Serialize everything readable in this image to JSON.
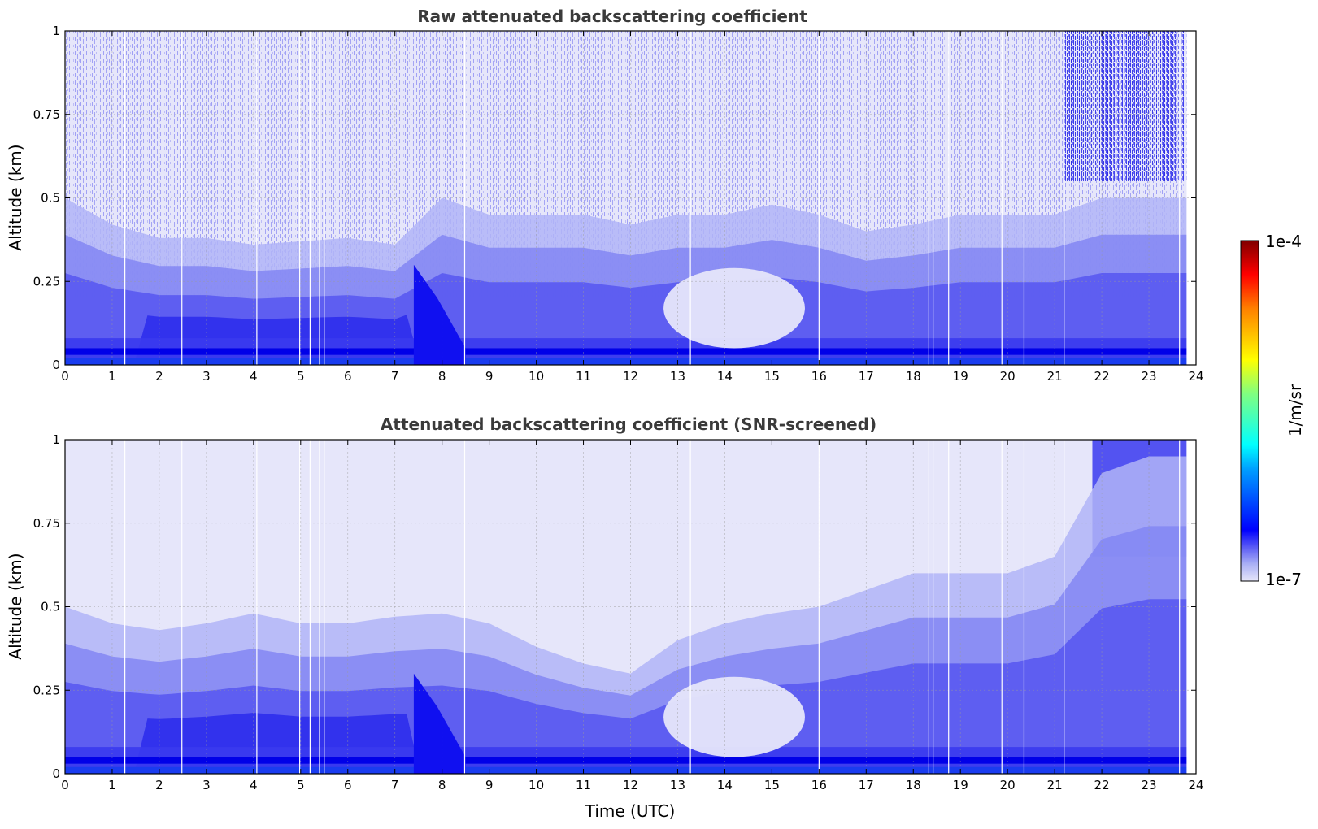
{
  "chart_data": [
    {
      "type": "heatmap",
      "title": "Raw attenuated backscattering coefficient",
      "xlabel": "",
      "ylabel": "Altitude (km)",
      "xlim": [
        0,
        24
      ],
      "ylim": [
        0,
        1
      ],
      "x_ticks": [
        "0",
        "1",
        "2",
        "3",
        "4",
        "5",
        "6",
        "7",
        "8",
        "9",
        "10",
        "11",
        "12",
        "13",
        "14",
        "15",
        "16",
        "17",
        "18",
        "19",
        "20",
        "21",
        "22",
        "23",
        "24"
      ],
      "y_ticks": [
        "0",
        "0.25",
        "0.5",
        "0.75",
        "1"
      ],
      "grid": true,
      "screened": false,
      "aerosol_layer_top_km": [
        [
          0,
          0.5
        ],
        [
          1,
          0.42
        ],
        [
          2,
          0.38
        ],
        [
          3,
          0.38
        ],
        [
          4,
          0.36
        ],
        [
          5,
          0.37
        ],
        [
          6,
          0.38
        ],
        [
          7,
          0.36
        ],
        [
          8,
          0.5
        ],
        [
          9,
          0.45
        ],
        [
          10,
          0.45
        ],
        [
          11,
          0.45
        ],
        [
          12,
          0.42
        ],
        [
          13,
          0.45
        ],
        [
          14,
          0.45
        ],
        [
          15,
          0.48
        ],
        [
          16,
          0.45
        ],
        [
          17,
          0.4
        ],
        [
          18,
          0.42
        ],
        [
          19,
          0.45
        ],
        [
          20,
          0.45
        ],
        [
          21,
          0.45
        ],
        [
          22,
          0.5
        ],
        [
          23,
          0.5
        ],
        [
          24,
          0.5
        ]
      ]
    },
    {
      "type": "heatmap",
      "title": "Attenuated backscattering coefficient (SNR-screened)",
      "xlabel": "Time (UTC)",
      "ylabel": "Altitude (km)",
      "xlim": [
        0,
        24
      ],
      "ylim": [
        0,
        1
      ],
      "x_ticks": [
        "0",
        "1",
        "2",
        "3",
        "4",
        "5",
        "6",
        "7",
        "8",
        "9",
        "10",
        "11",
        "12",
        "13",
        "14",
        "15",
        "16",
        "17",
        "18",
        "19",
        "20",
        "21",
        "22",
        "23",
        "24"
      ],
      "y_ticks": [
        "0",
        "0.25",
        "0.5",
        "0.75",
        "1"
      ],
      "grid": true,
      "screened": true,
      "aerosol_layer_top_km": [
        [
          0,
          0.5
        ],
        [
          1,
          0.45
        ],
        [
          2,
          0.43
        ],
        [
          3,
          0.45
        ],
        [
          4,
          0.48
        ],
        [
          5,
          0.45
        ],
        [
          6,
          0.45
        ],
        [
          7,
          0.47
        ],
        [
          8,
          0.48
        ],
        [
          9,
          0.45
        ],
        [
          10,
          0.38
        ],
        [
          11,
          0.33
        ],
        [
          12,
          0.3
        ],
        [
          13,
          0.4
        ],
        [
          14,
          0.45
        ],
        [
          15,
          0.48
        ],
        [
          16,
          0.5
        ],
        [
          17,
          0.55
        ],
        [
          18,
          0.6
        ],
        [
          19,
          0.6
        ],
        [
          20,
          0.6
        ],
        [
          21,
          0.65
        ],
        [
          22,
          0.9
        ],
        [
          23,
          0.95
        ],
        [
          24,
          0.95
        ]
      ]
    }
  ],
  "colorbar": {
    "label": "1/m/sr",
    "min_label": "1e-7",
    "max_label": "1e-4",
    "colormap": "jet",
    "scale": "log",
    "range": [
      1e-07,
      0.0001
    ]
  },
  "data_gaps_utc": [
    1.27,
    2.48,
    4.07,
    4.98,
    5.2,
    5.4,
    5.5,
    8.48,
    13.27,
    16.0,
    18.33,
    18.42,
    18.75,
    19.88,
    20.35,
    21.2,
    23.65
  ]
}
